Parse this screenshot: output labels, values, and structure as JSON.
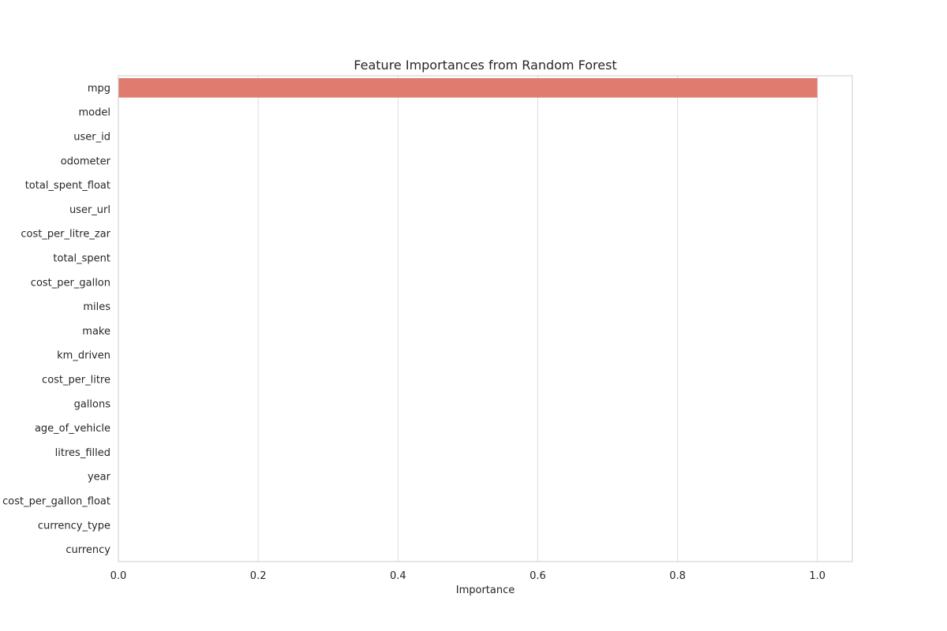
{
  "chart_data": {
    "type": "bar",
    "orientation": "horizontal",
    "title": "Feature Importances from Random Forest",
    "xlabel": "Importance",
    "ylabel": "",
    "xlim": [
      0,
      1.05
    ],
    "xticks": [
      "0.0",
      "0.2",
      "0.4",
      "0.6",
      "0.8",
      "1.0"
    ],
    "grid": true,
    "bar_color": "#e07b6f",
    "categories": [
      "mpg",
      "model",
      "user_id",
      "odometer",
      "total_spent_float",
      "user_url",
      "cost_per_litre_zar",
      "total_spent",
      "cost_per_gallon",
      "miles",
      "make",
      "km_driven",
      "cost_per_litre",
      "gallons",
      "age_of_vehicle",
      "litres_filled",
      "year",
      "cost_per_gallon_float",
      "currency_type",
      "currency"
    ],
    "values": [
      1.0,
      0.0,
      0.0,
      0.0,
      0.0,
      0.0,
      0.0,
      0.0,
      0.0,
      0.0,
      0.0,
      0.0,
      0.0,
      0.0,
      0.0,
      0.0,
      0.0,
      0.0,
      0.0,
      0.0
    ]
  }
}
